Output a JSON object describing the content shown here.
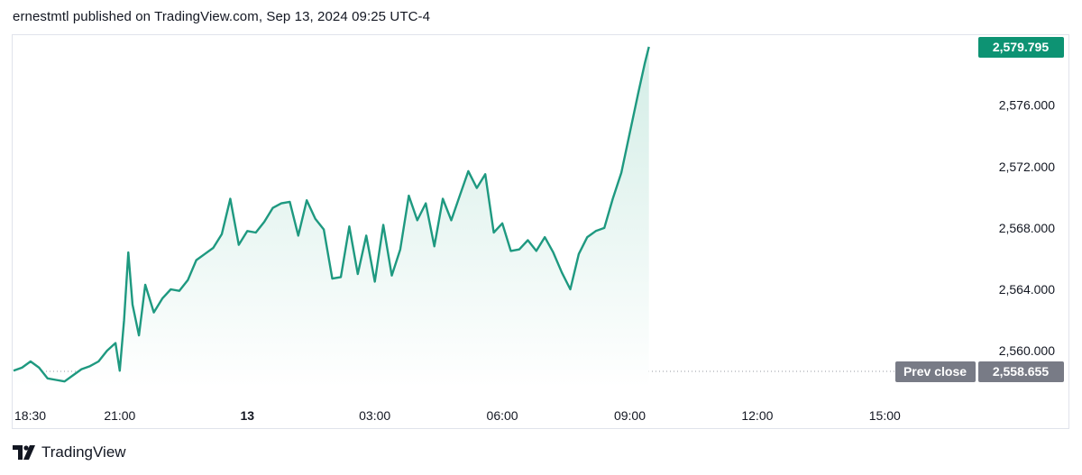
{
  "header": {
    "published_text": "ernestmtl published on TradingView.com, Sep 13, 2024 09:25 UTC-4"
  },
  "footer": {
    "brand": "TradingView",
    "logo_icon": "tradingview-logo-icon"
  },
  "colors": {
    "line": "#1e9980",
    "area_top": "#d3ede6",
    "area_bottom": "#ffffff",
    "last_price_tag": "#0d9373",
    "prev_close_tag": "#787b86",
    "grid": "#e0e3eb"
  },
  "price_labels": {
    "last_price": "2,579.795",
    "prev_close_label": "Prev close",
    "prev_close_value": "2,558.655"
  },
  "chart_data": {
    "type": "area",
    "title": "",
    "xlabel": "",
    "ylabel": "",
    "y_ticks": [
      {
        "value": 2560,
        "label": "2,560.000"
      },
      {
        "value": 2564,
        "label": "2,564.000"
      },
      {
        "value": 2568,
        "label": "2,568.000"
      },
      {
        "value": 2572,
        "label": "2,572.000"
      },
      {
        "value": 2576,
        "label": "2,576.000"
      }
    ],
    "x_ticks": [
      {
        "hour": 18.5,
        "label": "18:30",
        "bold": false
      },
      {
        "hour": 21,
        "label": "21:00",
        "bold": false
      },
      {
        "hour": 24,
        "label": "13",
        "bold": true
      },
      {
        "hour": 27,
        "label": "03:00",
        "bold": false
      },
      {
        "hour": 30,
        "label": "06:00",
        "bold": false
      },
      {
        "hour": 33,
        "label": "09:00",
        "bold": false
      },
      {
        "hour": 36,
        "label": "12:00",
        "bold": false
      },
      {
        "hour": 39,
        "label": "15:00",
        "bold": false
      }
    ],
    "x_range_hours": [
      18.5,
      41.2
    ],
    "y_range": [
      2557.6,
      2580.5
    ],
    "prev_close": 2558.655,
    "last_price": 2579.795,
    "series": [
      {
        "x": [
          18.5,
          18.7,
          18.9,
          19.1,
          19.3,
          19.5,
          19.7,
          19.9,
          20.1,
          20.3,
          20.5,
          20.7,
          20.9,
          21.0,
          21.1,
          21.2,
          21.3,
          21.45,
          21.6,
          21.8,
          22.0,
          22.2,
          22.4,
          22.6,
          22.8,
          23.0,
          23.2,
          23.4,
          23.6,
          23.8,
          24.0,
          24.2,
          24.4,
          24.6,
          24.8,
          25.0,
          25.2,
          25.4,
          25.6,
          25.8,
          26.0,
          26.2,
          26.4,
          26.6,
          26.8,
          27.0,
          27.2,
          27.4,
          27.6,
          27.8,
          28.0,
          28.2,
          28.4,
          28.6,
          28.8,
          29.0,
          29.2,
          29.4,
          29.6,
          29.8,
          30.0,
          30.2,
          30.4,
          30.6,
          30.8,
          31.0,
          31.2,
          31.4,
          31.6,
          31.8,
          32.0,
          32.2,
          32.4,
          32.6,
          32.8,
          33.0,
          33.2,
          33.35,
          33.45
        ],
        "y": [
          2558.7,
          2558.9,
          2559.3,
          2558.9,
          2558.2,
          2558.1,
          2558.0,
          2558.4,
          2558.8,
          2559.0,
          2559.3,
          2560.0,
          2560.5,
          2558.7,
          2562.0,
          2566.4,
          2563.0,
          2561.0,
          2564.3,
          2562.5,
          2563.4,
          2564.0,
          2563.9,
          2564.6,
          2565.9,
          2566.3,
          2566.7,
          2567.6,
          2569.9,
          2566.9,
          2567.8,
          2567.7,
          2568.4,
          2569.3,
          2569.6,
          2569.7,
          2567.5,
          2569.8,
          2568.6,
          2567.9,
          2564.7,
          2564.8,
          2568.1,
          2565.0,
          2567.5,
          2564.5,
          2568.2,
          2564.9,
          2566.6,
          2570.1,
          2568.5,
          2569.6,
          2566.8,
          2569.9,
          2568.5,
          2570.1,
          2571.7,
          2570.6,
          2571.5,
          2567.7,
          2568.3,
          2566.5,
          2566.6,
          2567.2,
          2566.5,
          2567.4,
          2566.4,
          2565.1,
          2564.0,
          2566.3,
          2567.4,
          2567.8,
          2568.0,
          2569.9,
          2571.6,
          2574.2,
          2576.8,
          2578.7,
          2579.8
        ]
      }
    ]
  }
}
